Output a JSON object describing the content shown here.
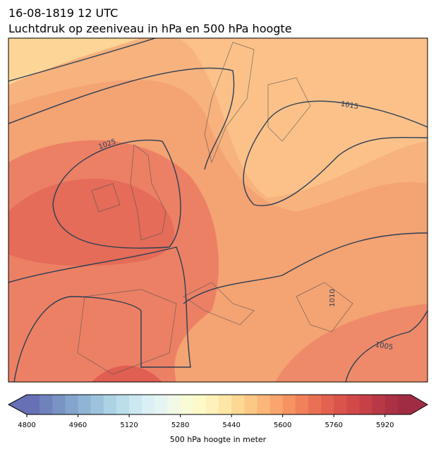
{
  "header": {
    "title": "16-08-1819 12 UTC",
    "subtitle": "Luchtdruk op zeeniveau in hPa en 500 hPa hoogte"
  },
  "map": {
    "contour_labels": [
      "1025",
      "1015",
      "1010",
      "1005"
    ]
  },
  "colorbar": {
    "label": "500 hPa hoogte in meter",
    "lim": [
      4800,
      6000
    ],
    "ticks": [
      4800,
      4960,
      5120,
      5280,
      5440,
      5600,
      5760,
      5920
    ],
    "colors": [
      "#6870b5",
      "#6f82bc",
      "#7893c4",
      "#83a4cc",
      "#8fb4d4",
      "#9dc3dc",
      "#acd2e4",
      "#bcdeea",
      "#cbe8f0",
      "#daf0f4",
      "#e7f5f2",
      "#f2f9e6",
      "#f8fbd6",
      "#fdf9c9",
      "#fef1b9",
      "#fee6a6",
      "#fdd894",
      "#fcc885",
      "#fbb779",
      "#f9a56d",
      "#f59363",
      "#f0815a",
      "#ea7055",
      "#e3614f",
      "#db544b",
      "#d14949",
      "#c64048",
      "#b93846",
      "#ac3145",
      "#a02c43"
    ]
  }
}
